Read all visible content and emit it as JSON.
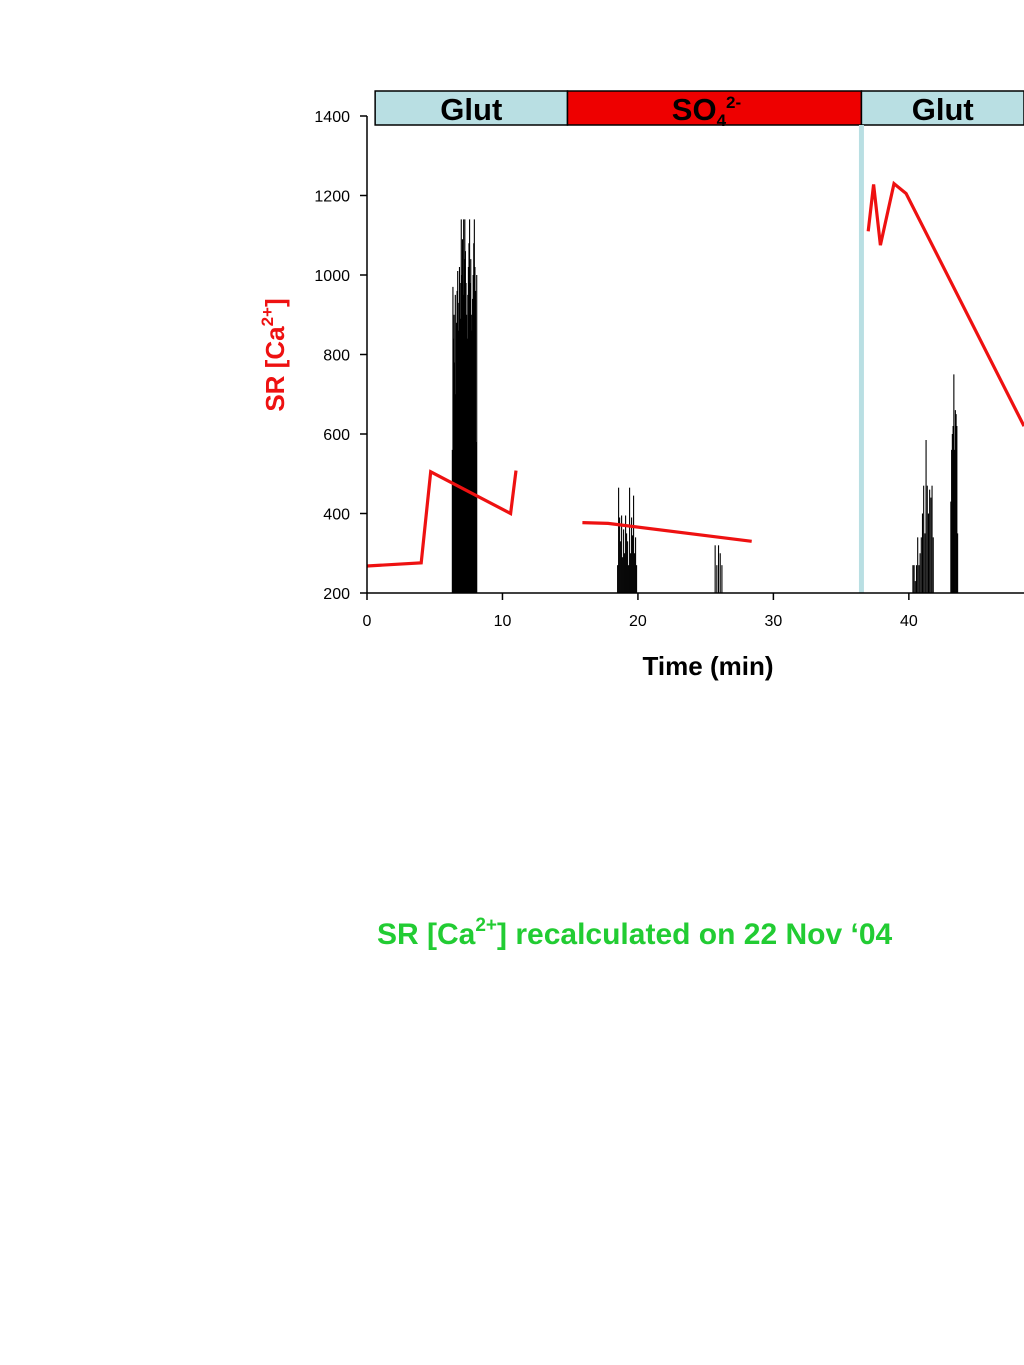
{
  "chart_data": {
    "type": "line",
    "xlabel": "Time (min)",
    "ylabel": {
      "main": "SR [Ca",
      "sup": "2+",
      "close": "]"
    },
    "xlim": [
      0,
      48.5
    ],
    "ylim": [
      200,
      1400
    ],
    "x_ticks": [
      0,
      10,
      20,
      30,
      40
    ],
    "y_ticks": [
      200,
      400,
      600,
      800,
      1000,
      1200,
      1400
    ],
    "grid": false,
    "colors": {
      "line": "#ee1111",
      "glut_band": "#b9dfe3",
      "so4_band": "#ee0000",
      "marker": "#b9dfe3",
      "ylabel": "#ee1111",
      "note": "#22cc33"
    },
    "bands": [
      {
        "label": "Glut",
        "sub": "",
        "sup": "",
        "start": 0.6,
        "end": 14.8,
        "color": "#b9dfe3"
      },
      {
        "label": "SO",
        "sub": "4",
        "sup": "2-",
        "start": 14.8,
        "end": 36.5,
        "color": "#ee0000"
      },
      {
        "label": "Glut",
        "sub": "",
        "sup": "",
        "start": 36.5,
        "end": 48.5,
        "color": "#b9dfe3"
      }
    ],
    "marker_x": 36.5,
    "series": [
      {
        "segments": [
          [
            [
              0,
              268
            ],
            [
              4,
              276
            ],
            [
              4.7,
              505
            ],
            [
              10.6,
              400
            ],
            [
              11,
              508
            ]
          ],
          [
            [
              15.9,
              377
            ],
            [
              17.8,
              375
            ],
            [
              28.4,
              330
            ]
          ],
          [
            [
              37,
              1110
            ],
            [
              37.4,
              1228
            ],
            [
              37.9,
              1075
            ],
            [
              38.9,
              1230
            ],
            [
              39.8,
              1205
            ],
            [
              48.5,
              620
            ]
          ]
        ]
      }
    ],
    "event_groups": [
      {
        "start": 6.3,
        "end": 8.1,
        "count": 42,
        "peaks": [
          560,
          970,
          840,
          900,
          780,
          950,
          700,
          880,
          960,
          1010,
          860,
          930,
          1020,
          980,
          890,
          1140,
          1000,
          1090,
          950,
          1140,
          1040,
          1140,
          1060,
          980,
          900,
          840,
          950,
          1020,
          1080,
          1140,
          980,
          1040,
          900,
          860,
          940,
          1000,
          1080,
          1140,
          1020,
          960,
          580,
          1000
        ]
      },
      {
        "start": 18.5,
        "end": 19.9,
        "count": 20,
        "peaks": [
          270,
          465,
          390,
          330,
          395,
          290,
          360,
          300,
          395,
          350,
          330,
          270,
          465,
          300,
          390,
          345,
          445,
          300,
          340,
          270
        ]
      },
      {
        "start": 25.7,
        "end": 26.2,
        "count": 5,
        "peaks": [
          320,
          270,
          320,
          300,
          270
        ]
      },
      {
        "start": 40.3,
        "end": 41.8,
        "count": 18,
        "peaks": [
          270,
          270,
          230,
          270,
          340,
          270,
          300,
          340,
          400,
          470,
          350,
          585,
          470,
          400,
          460,
          440,
          470,
          340
        ]
      },
      {
        "start": 43.1,
        "end": 43.6,
        "count": 10,
        "peaks": [
          430,
          560,
          600,
          620,
          750,
          560,
          660,
          650,
          620,
          350
        ]
      }
    ]
  },
  "note": {
    "prefix": "SR [Ca",
    "sup": "2+",
    "suffix": "] recalculated on 22 Nov ‘04"
  }
}
